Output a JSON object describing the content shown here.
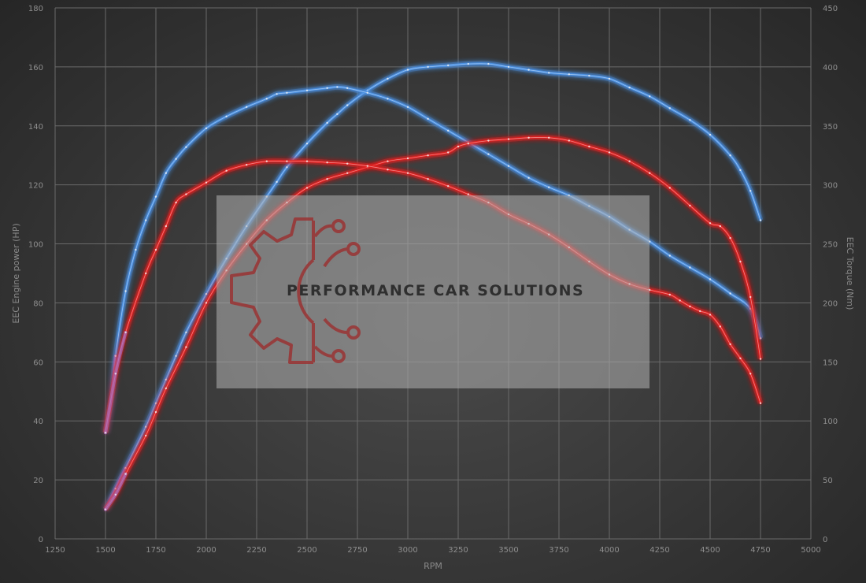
{
  "chart_data": {
    "type": "line",
    "xlabel": "RPM",
    "ylabel_left": "EEC Engine power (HP)",
    "ylabel_right": "EEC Torque (Nm)",
    "x_ticks": [
      1250,
      1500,
      1750,
      2000,
      2250,
      2500,
      2750,
      3000,
      3250,
      3500,
      3750,
      4000,
      4250,
      4500,
      4750,
      5000
    ],
    "y_left_ticks": [
      0,
      20,
      40,
      60,
      80,
      100,
      120,
      140,
      160,
      180
    ],
    "y_right_ticks": [
      0,
      50,
      100,
      150,
      200,
      250,
      300,
      350,
      400,
      450
    ],
    "xlim": [
      1250,
      5000
    ],
    "ylim_left": [
      0,
      180
    ],
    "ylim_right": [
      0,
      450
    ],
    "grid": true,
    "colors": {
      "tuned": "#4a90e2",
      "stock": "#e02020",
      "start_tint": "#a070c8"
    },
    "series": [
      {
        "axis": "left",
        "variant": "tuned",
        "x": [
          1500,
          1550,
          1600,
          1700,
          1750,
          1800,
          1850,
          1900,
          2000,
          2100,
          2200,
          2300,
          2350,
          2400,
          2500,
          2600,
          2650,
          2700,
          2800,
          2900,
          3000,
          3100,
          3200,
          3300,
          3400,
          3500,
          3600,
          3700,
          3800,
          3900,
          4000,
          4100,
          4200,
          4300,
          4400,
          4500,
          4600,
          4650,
          4700,
          4750
        ],
        "y": [
          10,
          17,
          24,
          38,
          46,
          54,
          62,
          70,
          83,
          95,
          106,
          116,
          121,
          126,
          134,
          141,
          144,
          147,
          152,
          156,
          159,
          160,
          160.5,
          161,
          161,
          160,
          159,
          158,
          157.5,
          157,
          156,
          153,
          150,
          146,
          142,
          137,
          130,
          125,
          118,
          108
        ]
      },
      {
        "axis": "right",
        "variant": "tuned",
        "x": [
          1500,
          1530,
          1550,
          1600,
          1650,
          1700,
          1750,
          1800,
          1850,
          1900,
          2000,
          2100,
          2200,
          2300,
          2350,
          2400,
          2500,
          2600,
          2650,
          2700,
          2800,
          2900,
          3000,
          3100,
          3200,
          3300,
          3400,
          3500,
          3600,
          3700,
          3800,
          3900,
          4000,
          4100,
          4200,
          4300,
          4400,
          4500,
          4600,
          4700,
          4750
        ],
        "y": [
          90,
          120,
          155,
          210,
          245,
          270,
          290,
          310,
          322,
          332,
          348,
          358,
          366,
          373,
          377,
          378,
          380,
          382,
          383,
          382,
          378,
          373,
          366,
          356,
          346,
          336,
          326,
          316,
          306,
          298,
          291,
          282,
          273,
          262,
          252,
          240,
          230,
          220,
          208,
          195,
          170
        ]
      },
      {
        "axis": "left",
        "variant": "stock",
        "x": [
          1500,
          1550,
          1600,
          1700,
          1750,
          1800,
          1900,
          2000,
          2100,
          2200,
          2300,
          2400,
          2500,
          2600,
          2700,
          2800,
          2900,
          3000,
          3100,
          3200,
          3250,
          3300,
          3400,
          3500,
          3600,
          3700,
          3800,
          3900,
          4000,
          4100,
          4200,
          4300,
          4400,
          4500,
          4550,
          4600,
          4650,
          4700,
          4750
        ],
        "y": [
          10,
          15,
          22,
          35,
          43,
          51,
          65,
          80,
          91,
          100,
          108,
          114,
          119,
          122,
          124,
          126,
          128,
          129,
          130,
          131,
          133,
          134,
          135,
          135.5,
          136,
          136,
          135,
          133,
          131,
          128,
          124,
          119,
          113,
          107,
          106,
          102,
          94,
          82,
          61
        ]
      },
      {
        "axis": "right",
        "variant": "stock",
        "x": [
          1500,
          1550,
          1600,
          1700,
          1750,
          1800,
          1850,
          1900,
          2000,
          2100,
          2200,
          2300,
          2400,
          2500,
          2600,
          2700,
          2800,
          2900,
          3000,
          3100,
          3200,
          3300,
          3400,
          3500,
          3600,
          3700,
          3800,
          3900,
          4000,
          4100,
          4200,
          4300,
          4350,
          4400,
          4450,
          4500,
          4550,
          4600,
          4650,
          4700,
          4750
        ],
        "y": [
          90,
          140,
          175,
          225,
          245,
          265,
          285,
          292,
          302,
          312,
          317,
          320,
          320,
          320,
          319,
          318,
          316,
          313,
          310,
          305,
          299,
          292,
          285,
          275,
          267,
          258,
          247,
          235,
          224,
          216,
          211,
          207,
          202,
          197,
          193,
          190,
          180,
          165,
          153,
          140,
          115
        ]
      }
    ]
  },
  "watermark": {
    "text": "PERFORMANCE CAR SOLUTIONS",
    "logo_icon": "gear-circuit-logo-icon"
  }
}
